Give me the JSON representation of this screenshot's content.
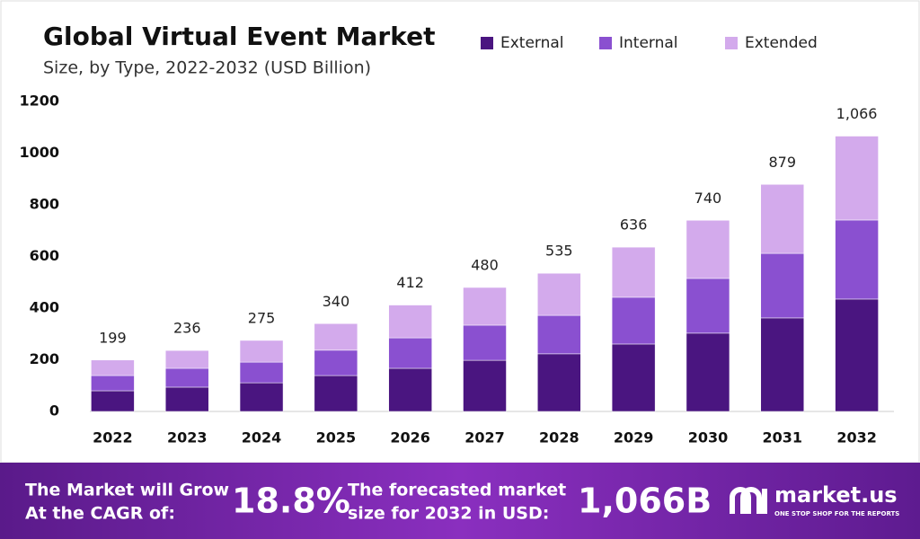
{
  "chart_data": {
    "type": "stacked_bar",
    "title": "Global Virtual Event Market",
    "subtitle": "Size, by Type, 2022-2032 (USD Billion)",
    "categories": [
      "2022",
      "2023",
      "2024",
      "2025",
      "2026",
      "2027",
      "2028",
      "2029",
      "2030",
      "2031",
      "2032"
    ],
    "series": [
      {
        "name": "External",
        "color": "#4a1580",
        "values": [
          80,
          94,
          111,
          139,
          167,
          198,
          223,
          261,
          303,
          362,
          435
        ]
      },
      {
        "name": "Internal",
        "color": "#8a50d0",
        "values": [
          59,
          73,
          80,
          98,
          118,
          136,
          149,
          181,
          212,
          250,
          306
        ]
      },
      {
        "name": "Extended",
        "color": "#d3aaec",
        "values": [
          60,
          69,
          84,
          103,
          127,
          146,
          163,
          194,
          225,
          267,
          325
        ]
      }
    ],
    "totals": {
      "values": [
        199,
        236,
        275,
        340,
        412,
        480,
        535,
        636,
        740,
        879,
        1066
      ],
      "value_labels": [
        "199",
        "236",
        "275",
        "340",
        "412",
        "480",
        "535",
        "636",
        "740",
        "879",
        "1,066"
      ]
    },
    "ylim": [
      0,
      1200
    ],
    "yticks": [
      0,
      200,
      400,
      600,
      800,
      1000,
      1200
    ],
    "grid": false
  },
  "banner": {
    "cagr_text": [
      "The Market will Grow",
      "At the CAGR of:"
    ],
    "cagr_value": "18.8%",
    "forecast_text": [
      "The forecasted market",
      "size for 2032 in USD:"
    ],
    "forecast_value": "1,066B",
    "brand": "market.us",
    "tagline": "ONE STOP SHOP FOR THE REPORTS"
  }
}
